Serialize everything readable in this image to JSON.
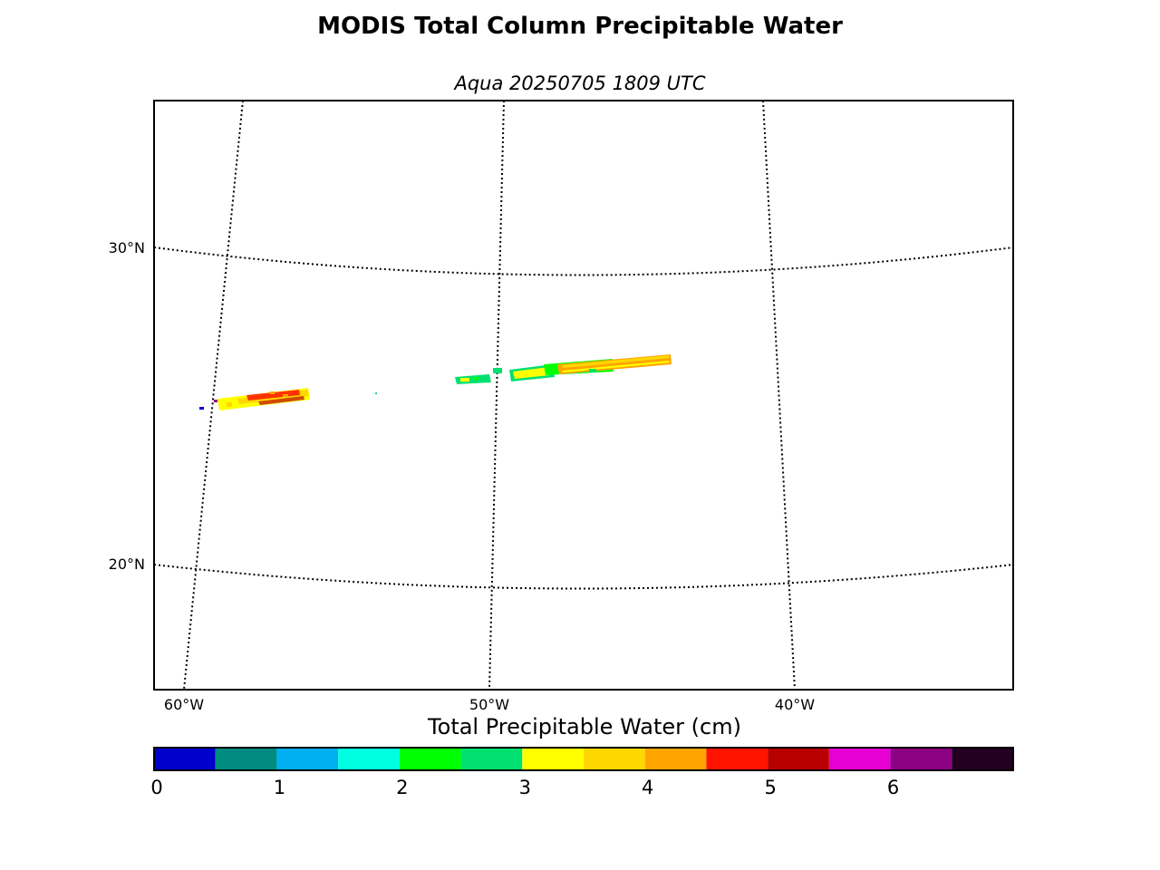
{
  "title": "MODIS Total Column Precipitable Water",
  "subtitle": "Aqua 20250705 1809 UTC",
  "map": {
    "lat_labels": [
      "30°N",
      "20°N"
    ],
    "lon_labels": [
      "60°W",
      "50°W",
      "40°W"
    ],
    "gridlines": "dotted",
    "data_swaths": [
      {
        "name": "western-swath",
        "approx_lon": [
          -59,
          -55
        ],
        "approx_lat": [
          25,
          25.5
        ],
        "dominant_values_cm": [
          3,
          5
        ]
      },
      {
        "name": "eastern-swath",
        "approx_lon": [
          -50,
          -43
        ],
        "approx_lat": [
          26,
          26.8
        ],
        "dominant_values_cm": [
          2.5,
          4.5
        ]
      }
    ]
  },
  "colorbar": {
    "title": "Total Precipitable Water (cm)",
    "ticks": [
      "0",
      "1",
      "2",
      "3",
      "4",
      "5",
      "6"
    ],
    "range": [
      0,
      7
    ],
    "bins": [
      {
        "from": 0.0,
        "to": 0.5,
        "color": "#0000cd"
      },
      {
        "from": 0.5,
        "to": 1.0,
        "color": "#008b80"
      },
      {
        "from": 1.0,
        "to": 1.5,
        "color": "#00b0f0"
      },
      {
        "from": 1.5,
        "to": 2.0,
        "color": "#00ffe0"
      },
      {
        "from": 2.0,
        "to": 2.5,
        "color": "#00ff00"
      },
      {
        "from": 2.5,
        "to": 3.0,
        "color": "#00e070"
      },
      {
        "from": 3.0,
        "to": 3.5,
        "color": "#ffff00"
      },
      {
        "from": 3.5,
        "to": 4.0,
        "color": "#ffd700"
      },
      {
        "from": 4.0,
        "to": 4.5,
        "color": "#ffa500"
      },
      {
        "from": 4.5,
        "to": 5.0,
        "color": "#ff1400"
      },
      {
        "from": 5.0,
        "to": 5.5,
        "color": "#b90000"
      },
      {
        "from": 5.5,
        "to": 6.0,
        "color": "#e600d2"
      },
      {
        "from": 6.0,
        "to": 6.5,
        "color": "#8c0082"
      },
      {
        "from": 6.5,
        "to": 7.0,
        "color": "#230023"
      }
    ]
  }
}
